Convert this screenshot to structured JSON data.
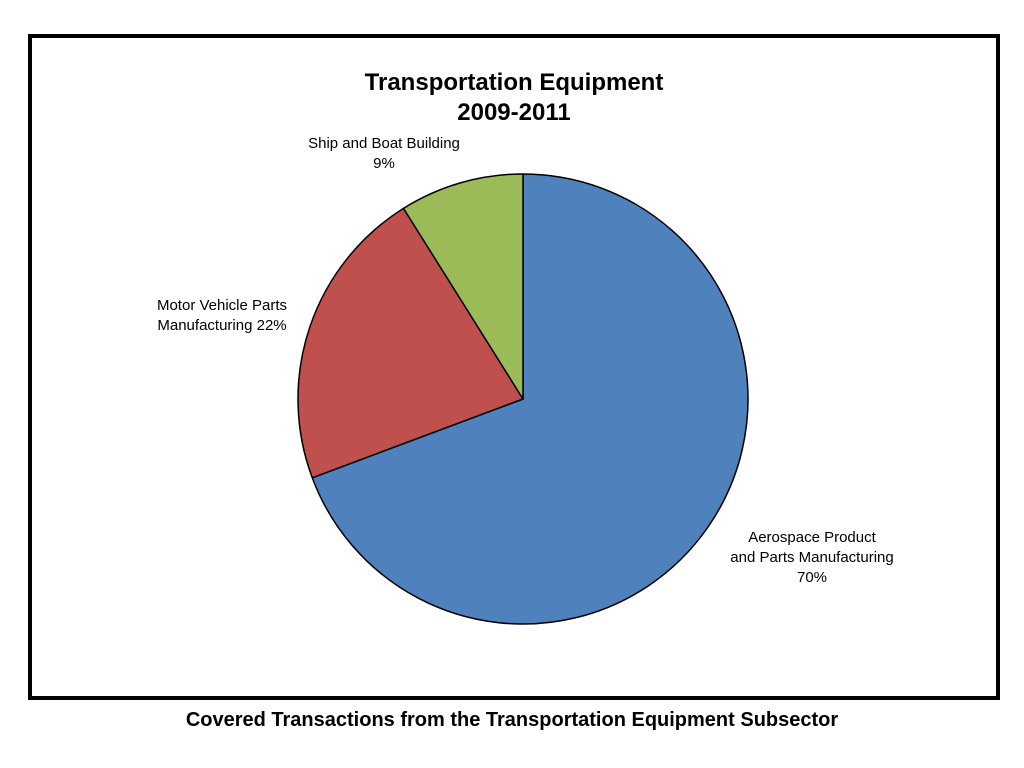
{
  "chart_data": {
    "type": "pie",
    "title": [
      "Transportation Equipment",
      "2009-2011"
    ],
    "slices": [
      {
        "label": [
          "Aerospace Product",
          "and Parts Manufacturing",
          "70%"
        ],
        "value": 70,
        "color": "#4F81BD"
      },
      {
        "label": [
          "Motor Vehicle Parts",
          "Manufacturing 22%"
        ],
        "value": 22,
        "color": "#C0504D"
      },
      {
        "label": [
          "Ship and Boat Building",
          "9%"
        ],
        "value": 9,
        "color": "#9BBB59"
      }
    ],
    "start": "12 o'clock",
    "direction": "clockwise"
  },
  "caption": "Covered Transactions from the Transportation Equipment Subsector"
}
